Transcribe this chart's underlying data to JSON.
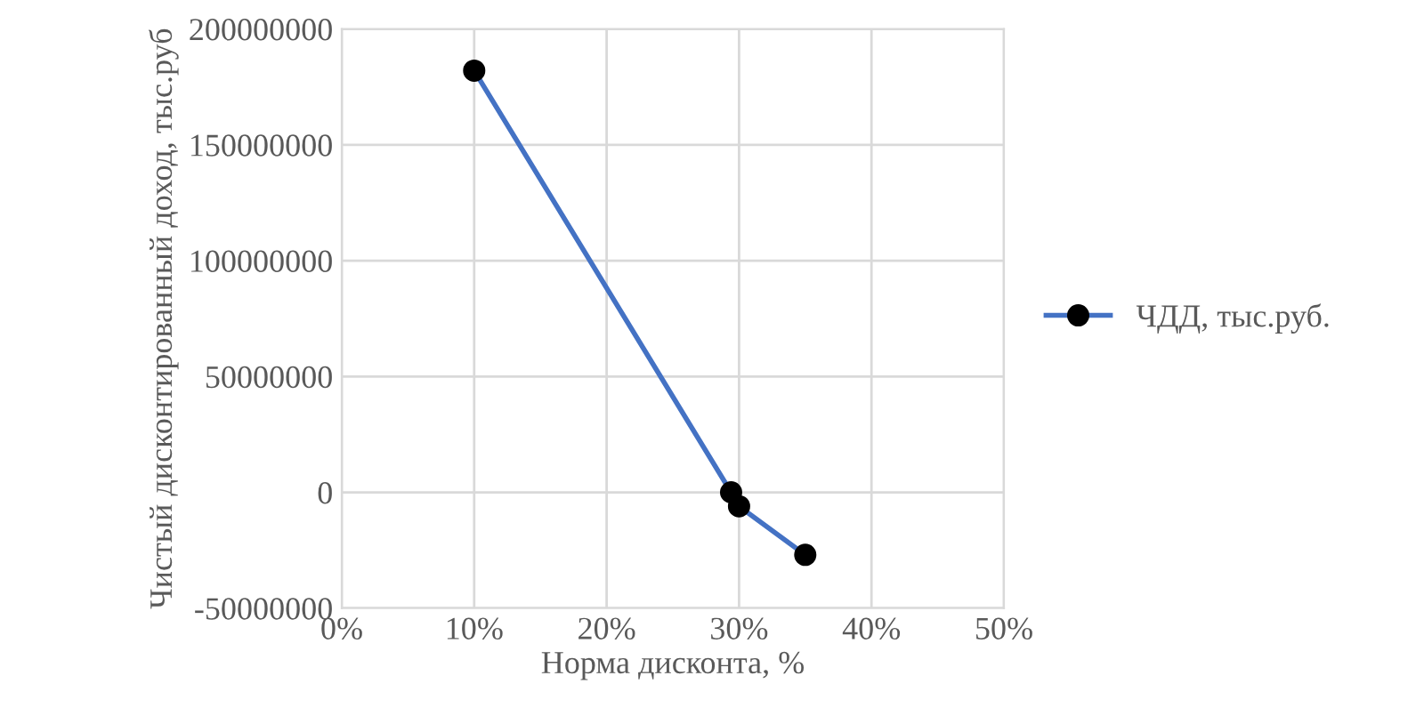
{
  "chart_data": {
    "type": "line",
    "xlabel": "Норма дисконта, %",
    "ylabel": "Чистый дисконтированный доход, тыс.руб",
    "x": [
      10,
      29.4,
      30,
      35
    ],
    "series": [
      {
        "name": "ЧДД, тыс.руб.",
        "color": "#4472c4",
        "values": [
          182000000,
          0,
          -6000000,
          -27000000
        ]
      }
    ],
    "xlim": [
      0,
      50
    ],
    "xticks": [
      {
        "value": 0,
        "label": "0%"
      },
      {
        "value": 10,
        "label": "10%"
      },
      {
        "value": 20,
        "label": "20%"
      },
      {
        "value": 30,
        "label": "30%"
      },
      {
        "value": 40,
        "label": "40%"
      },
      {
        "value": 50,
        "label": "50%"
      }
    ],
    "ylim": [
      -50000000,
      200000000
    ],
    "yticks": [
      -50000000,
      0,
      50000000,
      100000000,
      150000000,
      200000000
    ],
    "grid": true,
    "legend": "right",
    "marker": "circle",
    "line_style": "solid"
  }
}
